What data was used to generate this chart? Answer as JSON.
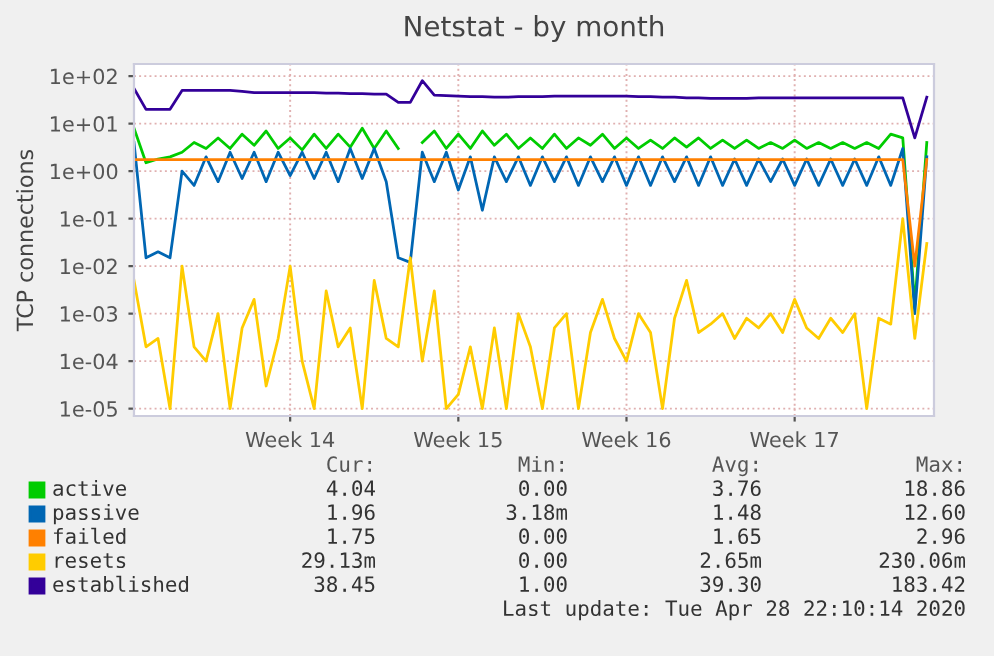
{
  "chart_data": {
    "type": "line",
    "title": "Netstat - by month",
    "ylabel": "TCP connections",
    "log": "y",
    "grid": true,
    "legend": "bottom",
    "marker": "none",
    "line_style": "solid",
    "categories": [
      null,
      null,
      null,
      null,
      null,
      null,
      null,
      null,
      null,
      null,
      null,
      null,
      null,
      "Week 14",
      null,
      null,
      null,
      null,
      null,
      null,
      null,
      null,
      null,
      null,
      null,
      null,
      null,
      "Week 15",
      null,
      null,
      null,
      null,
      null,
      null,
      null,
      null,
      null,
      null,
      null,
      null,
      null,
      "Week 16",
      null,
      null,
      null,
      null,
      null,
      null,
      null,
      null,
      null,
      null,
      null,
      null,
      null,
      "Week 17",
      null,
      null,
      null,
      null,
      null,
      null,
      null,
      null,
      null,
      null,
      null
    ],
    "ylim": [
      7e-06,
      180
    ],
    "yticks": [
      {
        "value": 1e-05,
        "label": "1e-05"
      },
      {
        "value": 0.0001,
        "label": "1e-04"
      },
      {
        "value": 0.001,
        "label": "1e-03"
      },
      {
        "value": 0.01,
        "label": "1e-02"
      },
      {
        "value": 0.1,
        "label": "1e-01"
      },
      {
        "value": 1,
        "label": "1e+00"
      },
      {
        "value": 10,
        "label": "1e+01"
      },
      {
        "value": 100,
        "label": "1e+02"
      }
    ],
    "series": [
      {
        "name": "active",
        "color": "#00cc00",
        "values": [
          8,
          1.5,
          1.8,
          2,
          2.5,
          4,
          3,
          5,
          3,
          6,
          3.5,
          7,
          3,
          5,
          2.8,
          6,
          3,
          6,
          3.2,
          8,
          3,
          7,
          3,
          null,
          4,
          7,
          3,
          6,
          3,
          7,
          3.5,
          6,
          3,
          5,
          3,
          6,
          3,
          5,
          3.5,
          6,
          3,
          5,
          3,
          4.5,
          3,
          5,
          3.2,
          5,
          3,
          4.5,
          3,
          4.5,
          3,
          4,
          3,
          4.5,
          3,
          4,
          3,
          4,
          3,
          4,
          3,
          6,
          5,
          0.0015,
          4
        ]
      },
      {
        "name": "passive",
        "color": "#0066b3",
        "values": [
          4,
          0.015,
          0.02,
          0.015,
          1,
          0.5,
          2,
          0.6,
          2.5,
          0.7,
          2.5,
          0.6,
          2.5,
          0.8,
          2.5,
          0.7,
          2.5,
          0.6,
          3,
          0.7,
          3,
          0.6,
          0.015,
          0.012,
          2.5,
          0.6,
          2.5,
          0.4,
          2,
          0.15,
          2,
          0.6,
          2,
          0.5,
          2,
          0.6,
          2,
          0.5,
          2,
          0.6,
          2,
          0.5,
          2,
          0.5,
          2,
          0.6,
          2,
          0.5,
          2,
          0.5,
          1.8,
          0.5,
          1.8,
          0.6,
          1.8,
          0.5,
          1.8,
          0.5,
          1.8,
          0.5,
          1.8,
          0.5,
          2,
          0.5,
          3,
          0.001,
          2
        ]
      },
      {
        "name": "failed",
        "color": "#ff8000",
        "values": [
          1.75,
          1.75,
          1.75,
          1.75,
          1.75,
          1.75,
          1.75,
          1.75,
          1.75,
          1.75,
          1.75,
          1.75,
          1.75,
          1.75,
          1.75,
          1.75,
          1.75,
          1.75,
          1.75,
          1.75,
          1.75,
          1.75,
          1.75,
          1.75,
          1.75,
          1.75,
          1.75,
          1.75,
          1.75,
          1.75,
          1.75,
          1.75,
          1.75,
          1.75,
          1.75,
          1.75,
          1.75,
          1.75,
          1.75,
          1.75,
          1.75,
          1.75,
          1.75,
          1.75,
          1.75,
          1.75,
          1.75,
          1.75,
          1.75,
          1.75,
          1.75,
          1.75,
          1.75,
          1.75,
          1.75,
          1.75,
          1.75,
          1.75,
          1.75,
          1.75,
          1.75,
          1.75,
          1.75,
          1.75,
          1.75,
          0.01,
          1.75
        ]
      },
      {
        "name": "resets",
        "color": "#ffcc00",
        "values": [
          0.005,
          0.0002,
          0.0003,
          1e-05,
          0.01,
          0.0002,
          0.0001,
          0.001,
          1e-05,
          0.0005,
          0.002,
          3e-05,
          0.0003,
          0.01,
          0.0001,
          1e-05,
          0.003,
          0.0002,
          0.0005,
          1e-05,
          0.005,
          0.0003,
          0.0002,
          0.015,
          0.0001,
          0.003,
          1e-05,
          2e-05,
          0.0002,
          1e-05,
          0.0005,
          1e-05,
          0.001,
          0.0002,
          1e-05,
          0.0005,
          0.001,
          1e-05,
          0.0004,
          0.002,
          0.0003,
          0.0001,
          0.001,
          0.0004,
          1e-05,
          0.0008,
          0.005,
          0.0004,
          0.0006,
          0.001,
          0.0003,
          0.0008,
          0.0005,
          0.001,
          0.0004,
          0.002,
          0.0005,
          0.0003,
          0.0008,
          0.0004,
          0.001,
          1e-05,
          0.0008,
          0.0006,
          0.1,
          0.0003,
          0.03
        ]
      },
      {
        "name": "established",
        "color": "#330099",
        "values": [
          55,
          20,
          20,
          20,
          50,
          50,
          50,
          50,
          50,
          48,
          45,
          45,
          45,
          45,
          45,
          45,
          44,
          44,
          43,
          43,
          42,
          42,
          28,
          28,
          80,
          40,
          39,
          38,
          37,
          37,
          36,
          36,
          37,
          37,
          37,
          38,
          38,
          38,
          38,
          38,
          38,
          38,
          37,
          37,
          36,
          36,
          35,
          35,
          34,
          34,
          34,
          34,
          35,
          35,
          35,
          35,
          35,
          35,
          35,
          35,
          35,
          35,
          35,
          35,
          35,
          5,
          36
        ]
      }
    ],
    "annotations": [
      "Cur:",
      "Min:",
      "Avg:",
      "Max:",
      "4.04",
      "0.00",
      "3.76",
      "18.86",
      "1.96",
      "3.18m",
      "1.48",
      "12.60",
      "1.75",
      "0.00",
      "1.65",
      "2.96",
      "29.13m",
      "0.00",
      "2.65m",
      "230.06m",
      "38.45",
      "1.00",
      "39.30",
      "183.42",
      "Last update: Tue Apr 28 22:10:14 2020"
    ]
  }
}
